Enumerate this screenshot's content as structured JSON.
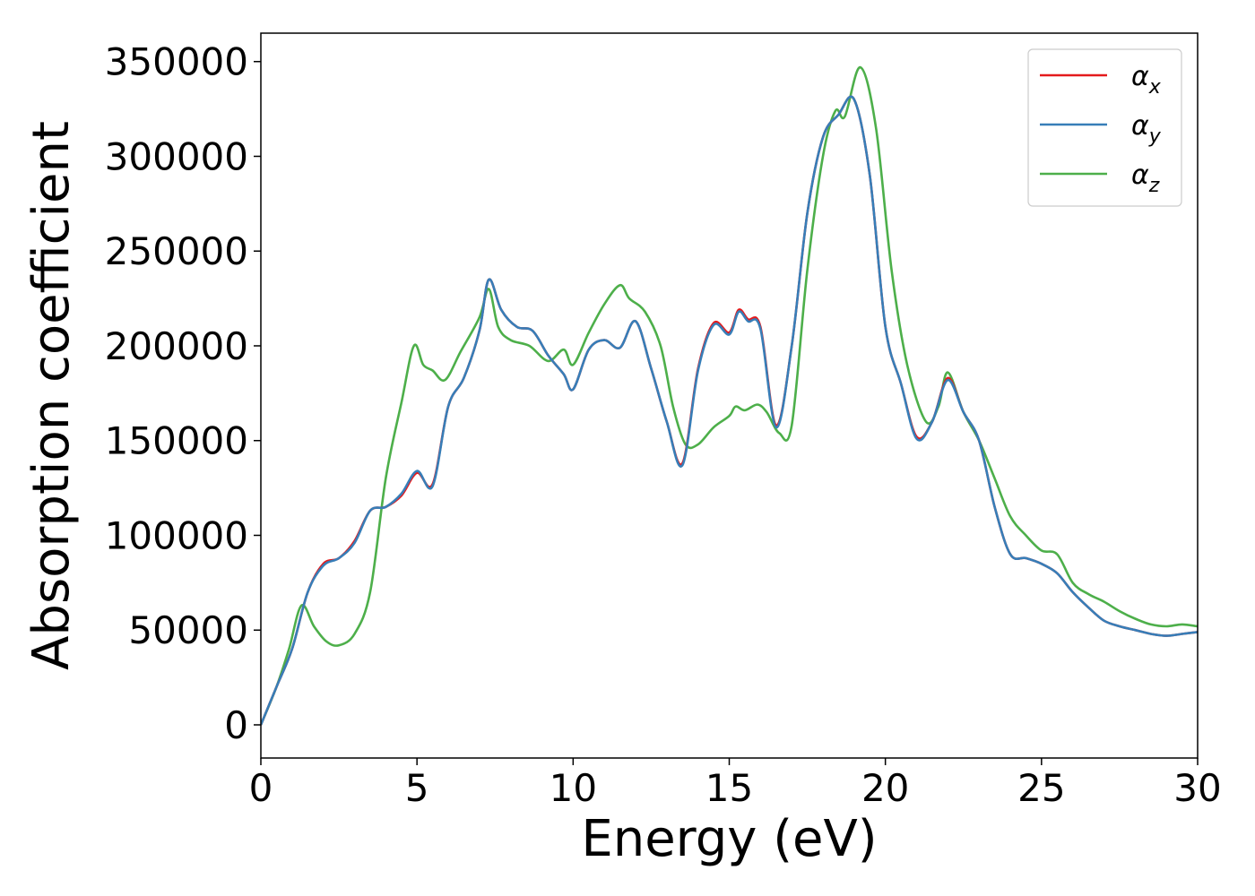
{
  "chart_data": {
    "type": "line",
    "xlabel": "Energy (eV)",
    "ylabel": "Absorption coefficient",
    "xlim": [
      0,
      30
    ],
    "ylim": [
      -17500,
      365000
    ],
    "xticks": [
      0,
      5,
      10,
      15,
      20,
      25,
      30
    ],
    "yticks": [
      0,
      50000,
      100000,
      150000,
      200000,
      250000,
      300000,
      350000
    ],
    "grid": false,
    "legend_position": "top-right",
    "series": [
      {
        "name": "α_x",
        "symbol": "α",
        "subscript": "x",
        "color": "#e41a1c",
        "x": [
          0,
          0.5,
          1,
          1.5,
          2,
          2.5,
          3,
          3.5,
          4,
          4.5,
          5,
          5.5,
          6,
          6.5,
          7,
          7.3,
          7.7,
          8.2,
          8.7,
          9.2,
          9.7,
          10,
          10.5,
          11,
          11.5,
          12,
          12.5,
          13,
          13.5,
          14,
          14.5,
          15,
          15.3,
          15.6,
          16,
          16.5,
          17,
          17.5,
          18,
          18.5,
          19,
          19.5,
          20,
          20.5,
          21,
          21.5,
          22,
          22.5,
          23,
          23.5,
          24,
          24.5,
          25,
          25.5,
          26,
          26.5,
          27,
          27.5,
          28,
          28.5,
          29,
          29.5,
          30
        ],
        "values": [
          0,
          20000,
          40000,
          70000,
          85000,
          88000,
          97000,
          113000,
          115000,
          121000,
          133000,
          127000,
          168000,
          183000,
          208000,
          235000,
          219000,
          210000,
          208000,
          195000,
          185000,
          177000,
          198000,
          203000,
          199000,
          213000,
          188000,
          160000,
          138000,
          188000,
          212000,
          207000,
          219000,
          214000,
          210000,
          158000,
          200000,
          270000,
          310000,
          322000,
          330000,
          290000,
          210000,
          180000,
          152000,
          160000,
          183000,
          165000,
          150000,
          115000,
          90000,
          88000,
          85000,
          80000,
          70000,
          62000,
          55000,
          52000,
          50000,
          48000,
          47000,
          48000,
          49000
        ]
      },
      {
        "name": "α_y",
        "symbol": "α",
        "subscript": "y",
        "color": "#377eb8",
        "x": [
          0,
          0.5,
          1,
          1.5,
          2,
          2.5,
          3,
          3.5,
          4,
          4.5,
          5,
          5.5,
          6,
          6.5,
          7,
          7.3,
          7.7,
          8.2,
          8.7,
          9.2,
          9.7,
          10,
          10.5,
          11,
          11.5,
          12,
          12.5,
          13,
          13.5,
          14,
          14.5,
          15,
          15.3,
          15.6,
          16,
          16.5,
          17,
          17.5,
          18,
          18.5,
          19,
          19.5,
          20,
          20.5,
          21,
          21.5,
          22,
          22.5,
          23,
          23.5,
          24,
          24.5,
          25,
          25.5,
          26,
          26.5,
          27,
          27.5,
          28,
          28.5,
          29,
          29.5,
          30
        ],
        "values": [
          0,
          20000,
          40000,
          70000,
          84000,
          88000,
          96000,
          113000,
          115000,
          122000,
          134000,
          126000,
          168000,
          183000,
          208000,
          235000,
          219000,
          210000,
          208000,
          195000,
          185000,
          177000,
          198000,
          203000,
          199000,
          213000,
          188000,
          160000,
          137000,
          187000,
          211000,
          206000,
          218000,
          213000,
          209000,
          157000,
          200000,
          270000,
          310000,
          322000,
          330000,
          290000,
          210000,
          180000,
          151000,
          160000,
          182000,
          165000,
          150000,
          115000,
          90000,
          88000,
          85000,
          80000,
          70000,
          62000,
          55000,
          52000,
          50000,
          48000,
          47000,
          48000,
          49000
        ]
      },
      {
        "name": "α_z",
        "symbol": "α",
        "subscript": "z",
        "color": "#4daf4a",
        "x": [
          0,
          0.5,
          0.9,
          1.3,
          1.7,
          2.1,
          2.5,
          3.0,
          3.5,
          4.0,
          4.5,
          4.9,
          5.2,
          5.5,
          5.9,
          6.4,
          7.0,
          7.3,
          7.6,
          8.0,
          8.6,
          9.2,
          9.7,
          10.0,
          10.5,
          11.0,
          11.5,
          11.8,
          12.3,
          12.8,
          13.2,
          13.6,
          14.0,
          14.5,
          15.0,
          15.2,
          15.5,
          15.9,
          16.2,
          16.6,
          17.0,
          17.5,
          18.0,
          18.4,
          18.7,
          19.2,
          19.7,
          20.2,
          20.7,
          21.3,
          21.7,
          22.0,
          22.5,
          23.0,
          23.5,
          24.0,
          24.5,
          25.0,
          25.5,
          26.0,
          26.5,
          27.0,
          27.5,
          28.0,
          28.5,
          29.0,
          29.5,
          30.0
        ],
        "values": [
          0,
          20000,
          40000,
          63000,
          52000,
          44000,
          42000,
          48000,
          70000,
          130000,
          170000,
          200000,
          190000,
          187000,
          182000,
          197000,
          215000,
          230000,
          210000,
          203000,
          200000,
          192000,
          198000,
          190000,
          207000,
          222000,
          232000,
          225000,
          218000,
          200000,
          168000,
          148000,
          148000,
          157000,
          163000,
          168000,
          166000,
          169000,
          165000,
          154000,
          158000,
          240000,
          300000,
          324000,
          321000,
          347000,
          315000,
          240000,
          190000,
          160000,
          168000,
          186000,
          165000,
          150000,
          130000,
          110000,
          100000,
          92000,
          90000,
          75000,
          69000,
          65000,
          60000,
          56000,
          53000,
          52000,
          53000,
          52000
        ]
      }
    ]
  }
}
